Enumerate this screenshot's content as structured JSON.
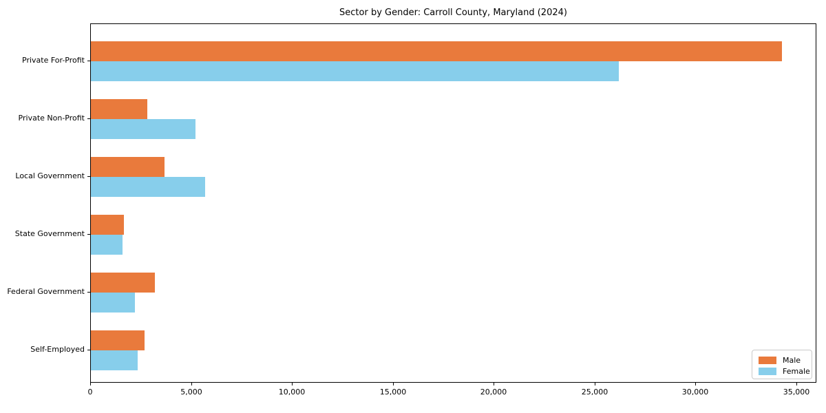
{
  "chart_data": {
    "type": "bar",
    "orientation": "horizontal",
    "title": "Sector by Gender: Carroll County, Maryland (2024)",
    "categories": [
      "Private For-Profit",
      "Private Non-Profit",
      "Local Government",
      "State Government",
      "Federal Government",
      "Self-Employed"
    ],
    "series": [
      {
        "name": "Male",
        "color": "#e97a3c",
        "values": [
          34270,
          2790,
          3640,
          1630,
          3160,
          2650
        ]
      },
      {
        "name": "Female",
        "color": "#87ceeb",
        "values": [
          26160,
          5180,
          5660,
          1570,
          2200,
          2310
        ]
      }
    ],
    "xlabel": "",
    "ylabel": "",
    "xlim": [
      0,
      36000
    ],
    "xticks": [
      0,
      5000,
      10000,
      15000,
      20000,
      25000,
      30000,
      35000
    ],
    "xtick_labels": [
      "0",
      "5,000",
      "10,000",
      "15,000",
      "20,000",
      "25,000",
      "30,000",
      "35,000"
    ],
    "grid": false,
    "legend": {
      "position": "lower right"
    }
  }
}
